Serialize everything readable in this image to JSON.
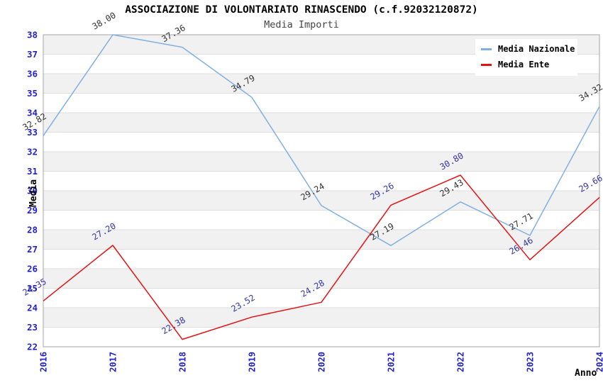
{
  "title": "ASSOCIAZIONE DI VOLONTARIATO RINASCENDO (c.f.92032120872)",
  "subtitle": "Media Importi",
  "legend": [
    {
      "label": "Media Nazionale",
      "color": "#7fb0e2"
    },
    {
      "label": "Media Ente",
      "color": "#e51212"
    }
  ],
  "chart_data": {
    "type": "line",
    "title": "ASSOCIAZIONE DI VOLONTARIATO RINASCENDO (c.f.92032120872)",
    "subtitle": "Media Importi",
    "xlabel": "Anno",
    "ylabel": "Media",
    "x": [
      2016,
      2017,
      2018,
      2019,
      2020,
      2021,
      2022,
      2023,
      2024
    ],
    "series": [
      {
        "name": "Media Nazionale",
        "color": "#7fb0e2",
        "label_color": "#333333",
        "values": [
          32.82,
          38.0,
          37.36,
          34.79,
          29.24,
          27.19,
          29.43,
          27.71,
          34.32
        ]
      },
      {
        "name": "Media Ente",
        "color": "#e51212",
        "label_color": "#3535a5",
        "values": [
          24.35,
          27.2,
          22.38,
          23.52,
          24.28,
          29.26,
          30.8,
          26.46,
          29.66
        ]
      }
    ],
    "ylim": [
      22,
      38
    ],
    "ytick_step": 1,
    "grid": true,
    "legend_position": "top-right",
    "band_colors": [
      "#f1f1f1",
      "#ffffff"
    ],
    "gridline_color": "#dedede",
    "border_color": "#a6a6a6",
    "tick_color": "#2222cc"
  }
}
